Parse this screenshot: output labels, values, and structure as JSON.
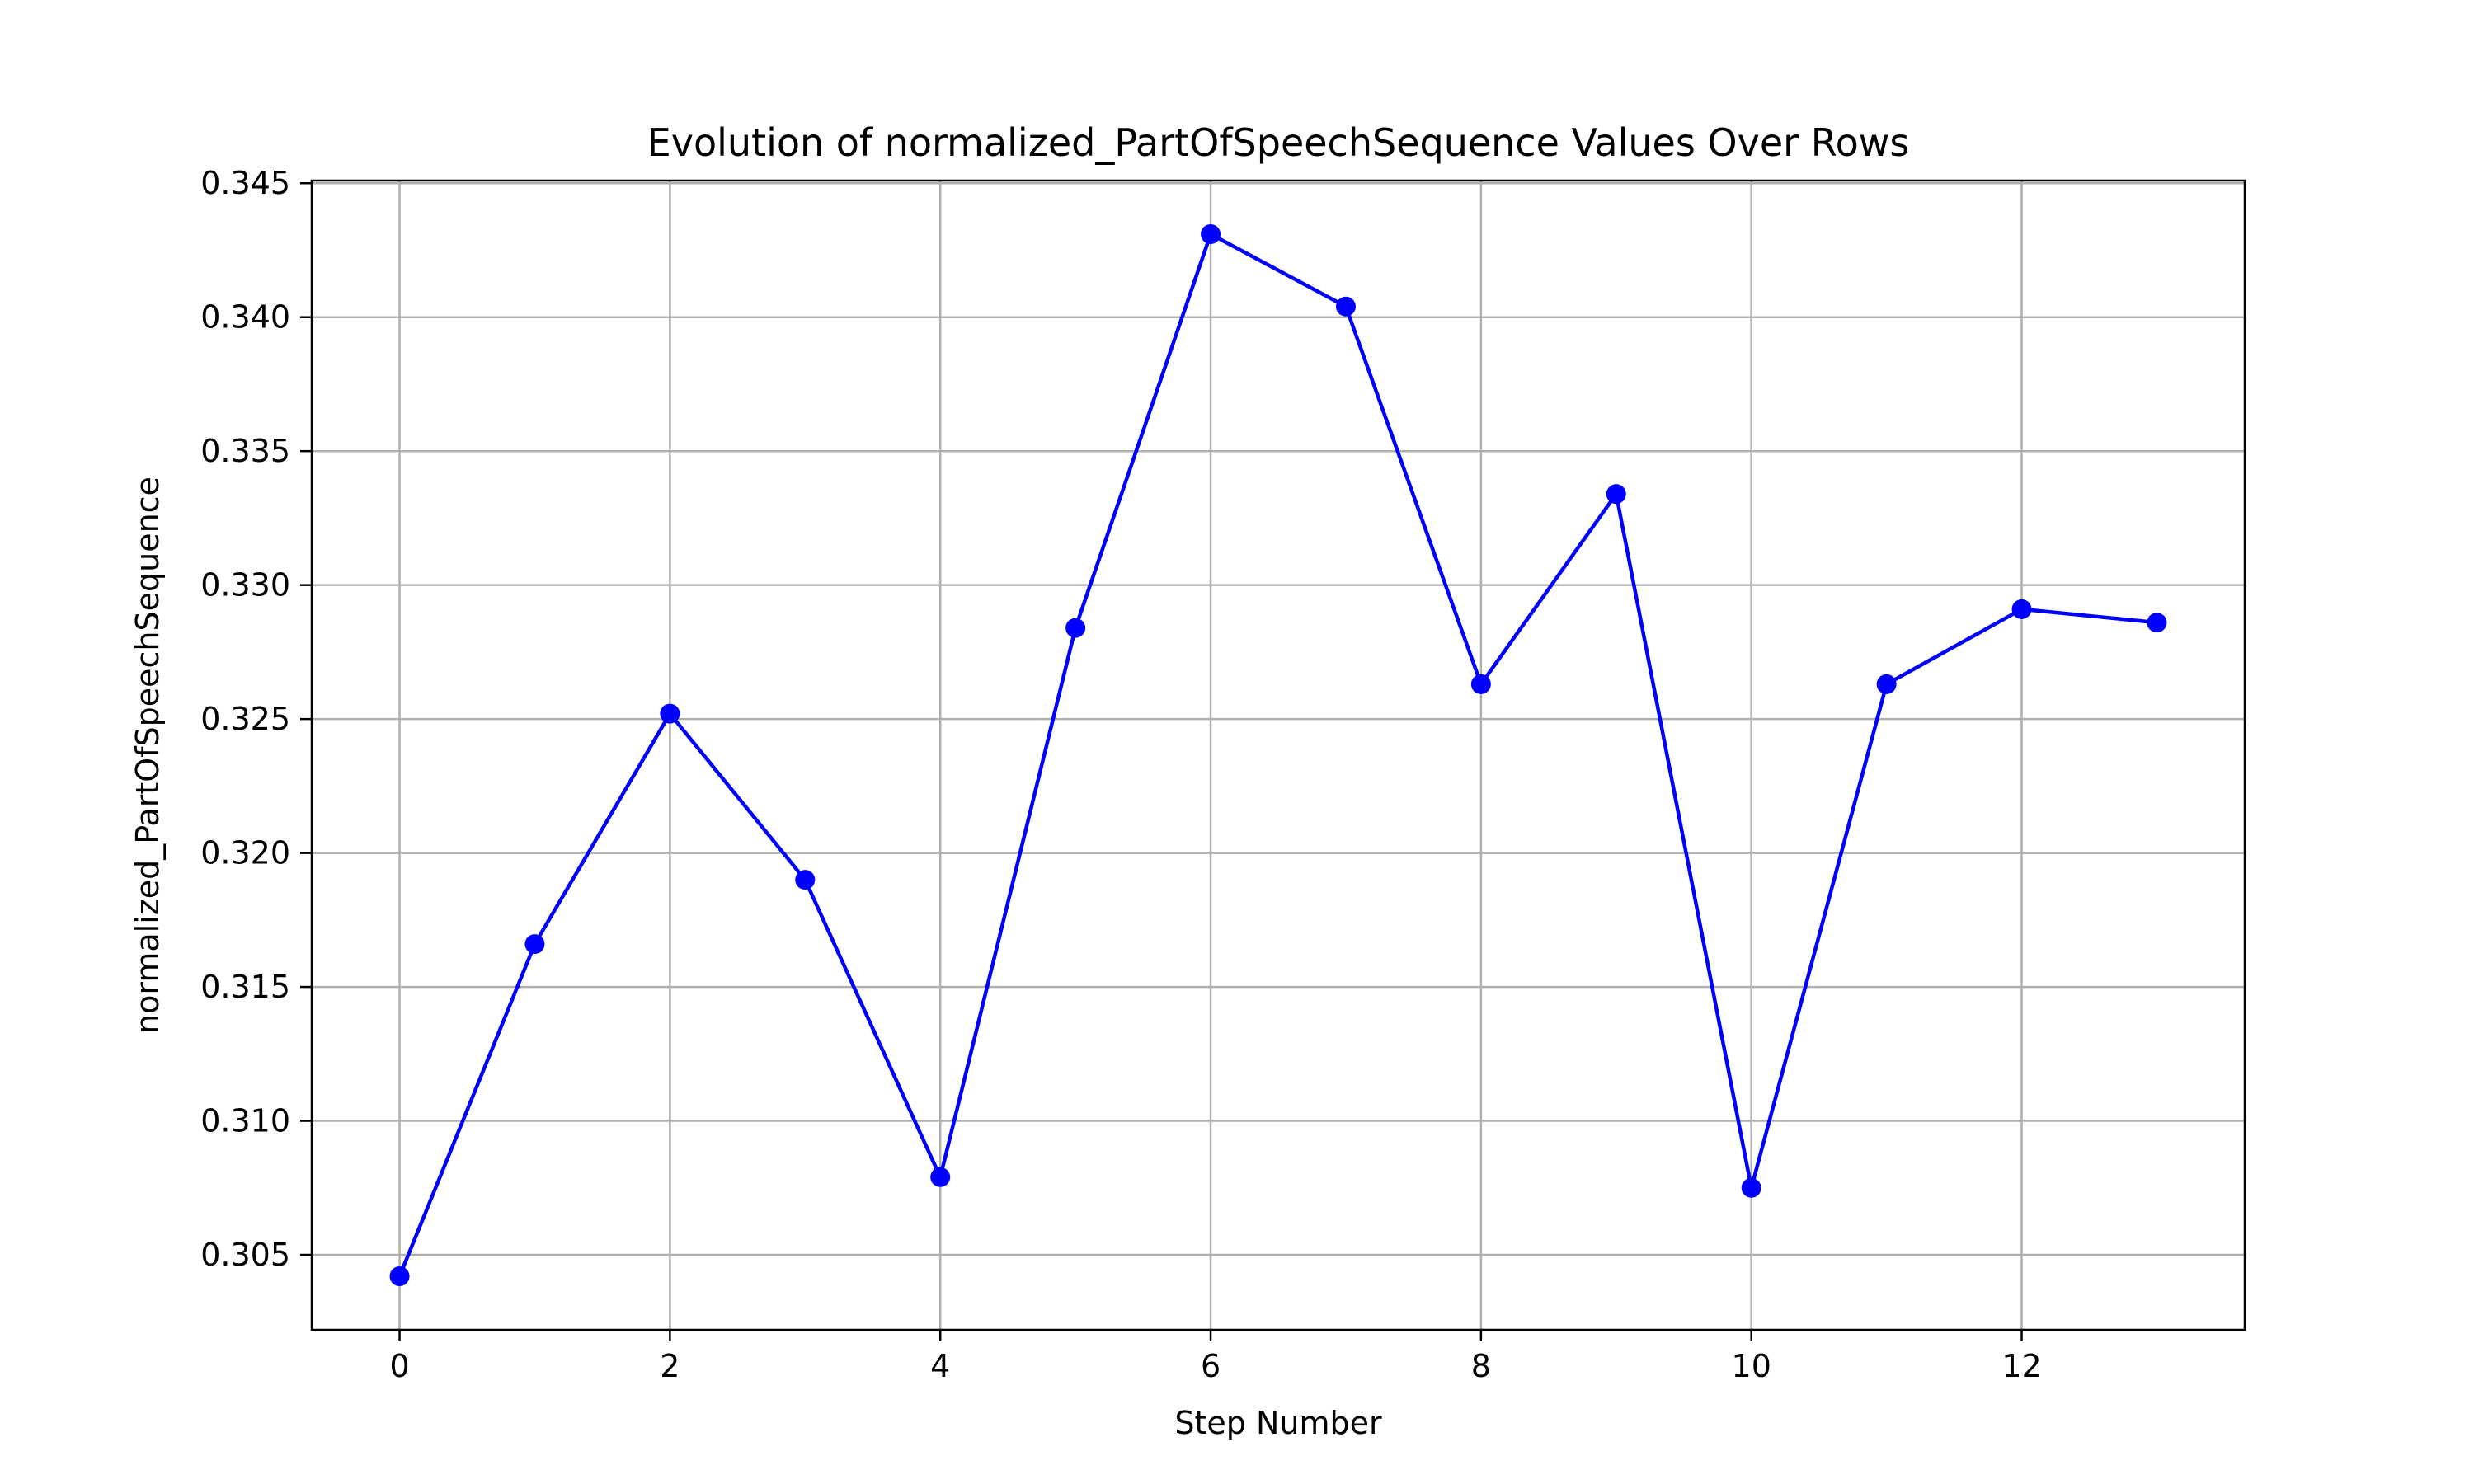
{
  "chart_data": {
    "type": "line",
    "title": "Evolution of normalized_PartOfSpeechSequence Values Over Rows",
    "xlabel": "Step Number",
    "ylabel": "normalized_PartOfSpeechSequence",
    "xlim": [
      -0.65,
      13.65
    ],
    "ylim": [
      0.3022,
      0.3451
    ],
    "x_ticks": [
      0,
      2,
      4,
      6,
      8,
      10,
      12
    ],
    "x_tick_labels": [
      "0",
      "2",
      "4",
      "6",
      "8",
      "10",
      "12"
    ],
    "y_ticks": [
      0.305,
      0.31,
      0.315,
      0.32,
      0.325,
      0.33,
      0.335,
      0.34,
      0.345
    ],
    "y_tick_labels": [
      "0.305",
      "0.310",
      "0.315",
      "0.320",
      "0.325",
      "0.330",
      "0.335",
      "0.340",
      "0.345"
    ],
    "grid": true,
    "series": [
      {
        "color": "#0000ff",
        "marker": "circle",
        "x": [
          0,
          1,
          2,
          3,
          4,
          5,
          6,
          7,
          8,
          9,
          10,
          11,
          12,
          13
        ],
        "y": [
          0.3042,
          0.3166,
          0.3252,
          0.319,
          0.3079,
          0.3284,
          0.3431,
          0.3404,
          0.3263,
          0.3334,
          0.3075,
          0.3263,
          0.3291,
          0.3286
        ]
      }
    ]
  }
}
